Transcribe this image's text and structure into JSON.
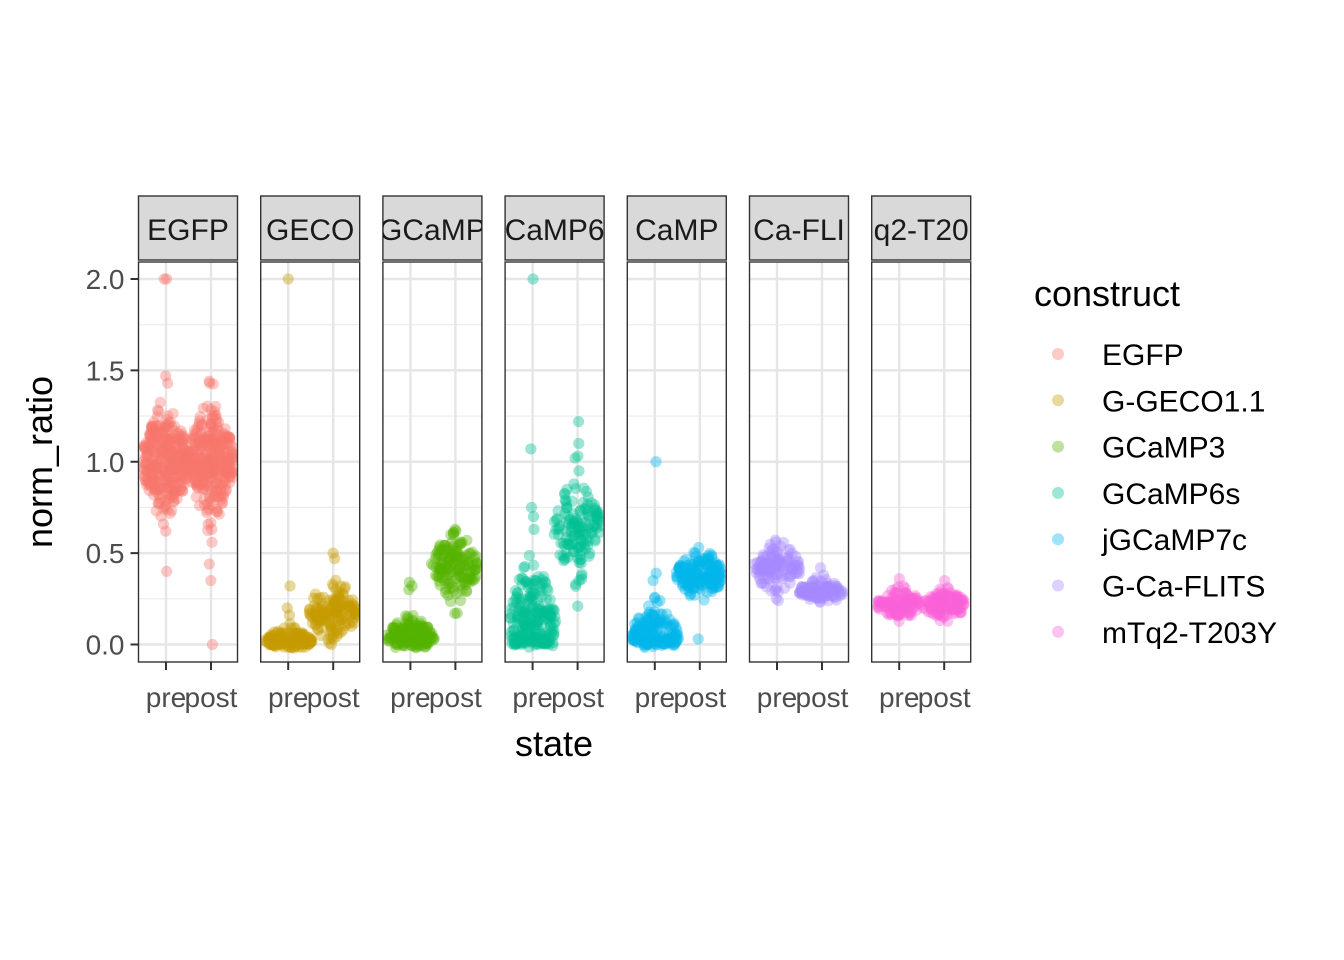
{
  "chart_data": {
    "type": "scatter",
    "subtype": "faceted beeswarm",
    "xlabel": "state",
    "ylabel": "norm_ratio",
    "x_categories": [
      "pre",
      "post"
    ],
    "ylim": [
      -0.05,
      2.05
    ],
    "y_ticks": [
      "0.0",
      "0.5",
      "1.0",
      "1.5",
      "2.0"
    ],
    "grid": true,
    "legend": {
      "title": "construct",
      "placement": "right",
      "entries": [
        "EGFP",
        "G-GECO1.1",
        "GCaMP3",
        "GCaMP6s",
        "jGCaMP7c",
        "G-Ca-FLITS",
        "mTq2-T203Y"
      ]
    },
    "facets": [
      {
        "strip_label": "EGFP",
        "construct": "EGFP",
        "color": "#F8766D",
        "pre": {
          "center": 1.0,
          "sd": 0.13,
          "n": 320,
          "outliers": [
            2.0,
            2.0,
            0.4,
            0.62,
            1.47,
            1.43
          ]
        },
        "post": {
          "center": 1.0,
          "sd": 0.13,
          "n": 320,
          "outliers": [
            1.44,
            1.43,
            0.44,
            0.35,
            0.0,
            0.63
          ]
        }
      },
      {
        "strip_label": "GECO",
        "construct": "G-GECO1.1",
        "color": "#C49A00",
        "pre": {
          "center": 0.02,
          "sd": 0.03,
          "n": 150,
          "outliers": [
            2.0,
            0.32,
            0.2,
            0.16
          ]
        },
        "post": {
          "center": 0.18,
          "sd": 0.08,
          "n": 150,
          "outliers": [
            0.5,
            0.47,
            0.0,
            0.03
          ]
        }
      },
      {
        "strip_label": "GCaMP",
        "construct": "GCaMP3",
        "color": "#53B400",
        "pre": {
          "center": 0.04,
          "sd": 0.05,
          "n": 150,
          "outliers": [
            0.34,
            0.32,
            0.3
          ]
        },
        "post": {
          "center": 0.43,
          "sd": 0.08,
          "n": 150,
          "outliers": [
            0.63,
            0.6,
            0.17
          ]
        }
      },
      {
        "strip_label": "CaMP6",
        "construct": "GCaMP6s",
        "color": "#00C094",
        "pre": {
          "center": 0.12,
          "sd": 0.14,
          "n": 230,
          "outliers": [
            2.0,
            1.07,
            0.75,
            0.7,
            0.63
          ]
        },
        "post": {
          "center": 0.63,
          "sd": 0.12,
          "n": 140,
          "outliers": [
            1.22,
            1.1,
            0.95,
            0.33,
            0.21
          ]
        }
      },
      {
        "strip_label": "CaMP",
        "construct": "jGCaMP7c",
        "color": "#00B6EB",
        "pre": {
          "center": 0.05,
          "sd": 0.07,
          "n": 160,
          "outliers": [
            1.0,
            0.39,
            0.35
          ]
        },
        "post": {
          "center": 0.38,
          "sd": 0.06,
          "n": 150,
          "outliers": [
            0.53,
            0.03
          ]
        }
      },
      {
        "strip_label": "Ca-FLI",
        "construct": "G-Ca-FLITS",
        "color": "#A58AFF",
        "pre": {
          "center": 0.42,
          "sd": 0.06,
          "n": 120,
          "outliers": [
            0.56,
            0.25
          ]
        },
        "post": {
          "center": 0.29,
          "sd": 0.03,
          "n": 110,
          "outliers": [
            0.42,
            0.38
          ]
        }
      },
      {
        "strip_label": "q2-T20",
        "construct": "mTq2-T203Y",
        "color": "#FB61D7",
        "pre": {
          "center": 0.22,
          "sd": 0.035,
          "n": 110,
          "outliers": [
            0.36,
            0.16
          ]
        },
        "post": {
          "center": 0.22,
          "sd": 0.035,
          "n": 110,
          "outliers": [
            0.35,
            0.15
          ]
        }
      }
    ]
  }
}
